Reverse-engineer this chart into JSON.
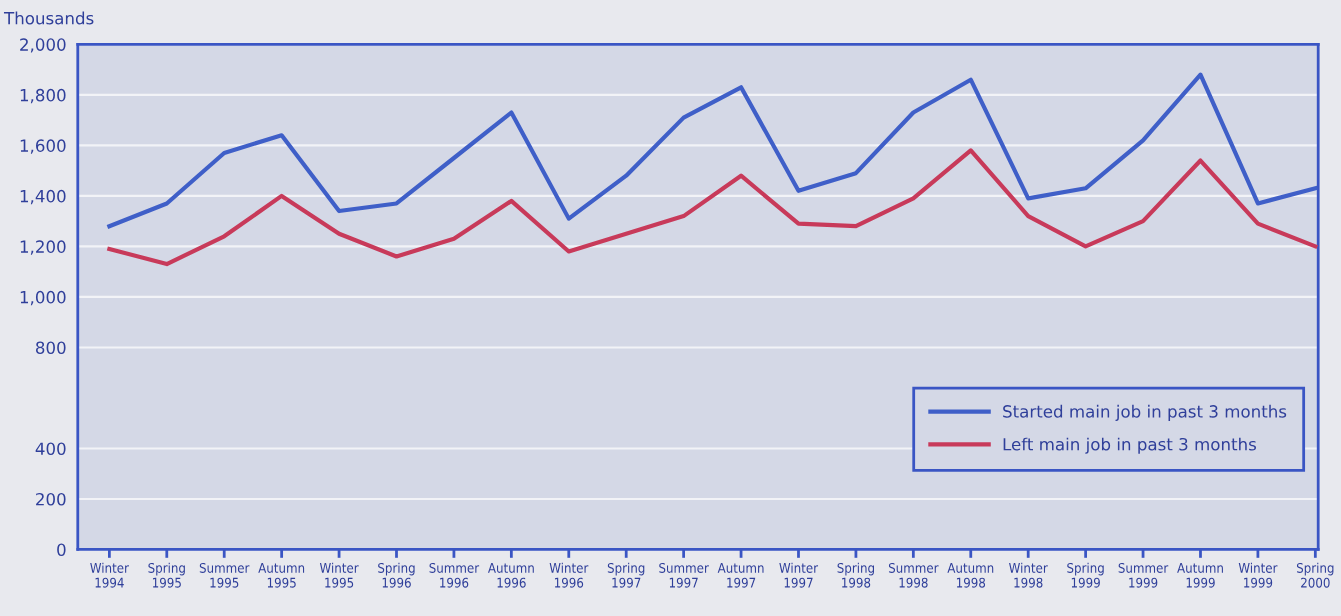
{
  "chart_data": {
    "type": "line",
    "ylabel": "Thousands",
    "categories": [
      "Winter\n1994",
      "Spring\n1995",
      "Summer\n1995",
      "Autumn\n1995",
      "Winter\n1995",
      "Spring\n1996",
      "Summer\n1996",
      "Autumn\n1996",
      "Winter\n1996",
      "Spring\n1997",
      "Summer\n1997",
      "Autumn\n1997",
      "Winter\n1997",
      "Spring\n1998",
      "Summer\n1998",
      "Autumn\n1998",
      "Winter\n1998",
      "Spring\n1999",
      "Summer\n1999",
      "Autumn\n1999",
      "Winter\n1999",
      "Spring\n2000"
    ],
    "series": [
      {
        "name": "Started main job in past 3 months",
        "color": "#3f5fc8",
        "values": [
          1280,
          1370,
          1570,
          1640,
          1340,
          1370,
          1550,
          1730,
          1310,
          1480,
          1710,
          1830,
          1420,
          1490,
          1730,
          1860,
          1390,
          1430,
          1620,
          1880,
          1370,
          1430
        ]
      },
      {
        "name": "Left main job in past 3 months",
        "color": "#c83a5a",
        "values": [
          1190,
          1130,
          1240,
          1400,
          1250,
          1160,
          1230,
          1380,
          1180,
          1250,
          1320,
          1480,
          1290,
          1280,
          1390,
          1580,
          1320,
          1200,
          1300,
          1540,
          1290,
          1200
        ]
      }
    ],
    "ylim": [
      0,
      2000
    ],
    "yticks": [
      0,
      200,
      400,
      800,
      {
        "value": 1000,
        "label": "1,000"
      },
      {
        "value": 1200,
        "label": "1,200"
      },
      {
        "value": 1400,
        "label": "1,400"
      },
      {
        "value": 1600,
        "label": "1,600"
      },
      {
        "value": 1800,
        "label": "1,800"
      },
      {
        "value": 2000,
        "label": "2,000"
      }
    ],
    "grid": "y",
    "legend": "bottom right",
    "marker": "none",
    "line_style": "solid"
  }
}
